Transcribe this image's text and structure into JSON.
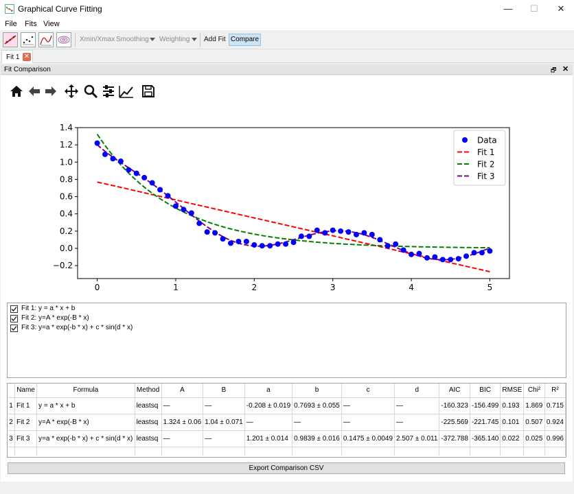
{
  "window": {
    "title": "Graphical Curve Fitting",
    "min": "—",
    "max": "☐",
    "close": "✕"
  },
  "menu": [
    "File",
    "Fits",
    "View"
  ],
  "toolbar": {
    "xminxmax": "Xmin/Xmax",
    "smoothing": "Smoothing",
    "weighting": "Weighting",
    "add_fit": "Add Fit",
    "compare": "Compare"
  },
  "tabs": [
    {
      "label": "Fit 1"
    }
  ],
  "dock": {
    "title": "Fit Comparison",
    "float": "🗗",
    "close": "✕"
  },
  "chart_data": {
    "type": "scatter",
    "xlim": [
      -0.25,
      5.25
    ],
    "ylim": [
      -0.35,
      1.4
    ],
    "xticks": [
      "0",
      "1",
      "2",
      "3",
      "4",
      "5"
    ],
    "yticks": [
      "−0.2",
      "0.0",
      "0.2",
      "0.4",
      "0.6",
      "0.8",
      "1.0",
      "1.2",
      "1.4"
    ],
    "legend_position": "top-right",
    "grid": false,
    "data": {
      "name": "Data",
      "color": "#0000ff",
      "x": [
        0.0,
        0.1,
        0.2,
        0.3,
        0.4,
        0.5,
        0.6,
        0.7,
        0.8,
        0.9,
        1.0,
        1.1,
        1.2,
        1.3,
        1.4,
        1.5,
        1.6,
        1.7,
        1.8,
        1.9,
        2.0,
        2.1,
        2.2,
        2.3,
        2.4,
        2.5,
        2.6,
        2.7,
        2.8,
        2.9,
        3.0,
        3.1,
        3.2,
        3.3,
        3.4,
        3.5,
        3.6,
        3.7,
        3.8,
        3.9,
        4.0,
        4.1,
        4.2,
        4.3,
        4.4,
        4.5,
        4.6,
        4.7,
        4.8,
        4.9,
        5.0
      ],
      "y": [
        1.22,
        1.09,
        1.04,
        1.01,
        0.91,
        0.87,
        0.82,
        0.76,
        0.68,
        0.61,
        0.49,
        0.45,
        0.41,
        0.29,
        0.19,
        0.18,
        0.11,
        0.06,
        0.08,
        0.08,
        0.04,
        0.03,
        0.03,
        0.05,
        0.05,
        0.07,
        0.14,
        0.14,
        0.21,
        0.18,
        0.21,
        0.2,
        0.19,
        0.16,
        0.18,
        0.16,
        0.1,
        0.03,
        0.05,
        -0.02,
        -0.07,
        -0.06,
        -0.11,
        -0.1,
        -0.13,
        -0.13,
        -0.12,
        -0.09,
        -0.05,
        -0.05,
        -0.03
      ]
    },
    "series": [
      {
        "name": "Fit 1",
        "color": "#ff0000",
        "model": "linear",
        "params": {
          "a": -0.208,
          "b": 0.7693
        }
      },
      {
        "name": "Fit 2",
        "color": "#008000",
        "model": "exp",
        "params": {
          "A": 1.324,
          "B": 1.04
        }
      },
      {
        "name": "Fit 3",
        "color": "#800080",
        "model": "exp_sin",
        "params": {
          "a": 1.201,
          "b": 0.9839,
          "c": 0.1475,
          "d": 2.507
        }
      }
    ]
  },
  "checklist": [
    {
      "checked": true,
      "label": "Fit 1: y = a * x + b"
    },
    {
      "checked": true,
      "label": "Fit 2: y=A * exp(-B * x)"
    },
    {
      "checked": true,
      "label": "Fit 3: y=a * exp(-b * x) + c * sin(d * x)"
    }
  ],
  "table": {
    "headers": [
      "Name",
      "Formula",
      "Method",
      "A",
      "B",
      "a",
      "b",
      "c",
      "d",
      "AIC",
      "BIC",
      "RMSE",
      "Chi²",
      "R²"
    ],
    "rows": [
      {
        "num": "1",
        "cells": [
          "Fit 1",
          "y = a * x + b",
          "leastsq",
          "—",
          "—",
          "-0.208 ± 0.019",
          "0.7693 ± 0.055",
          "—",
          "—",
          "-160.323",
          "-156.499",
          "0.193",
          "1.869",
          "0.715"
        ]
      },
      {
        "num": "2",
        "cells": [
          "Fit 2",
          "y=A * exp(-B * x)",
          "leastsq",
          "1.324 ± 0.06",
          "1.04 ± 0.071",
          "—",
          "—",
          "—",
          "—",
          "-225.569",
          "-221.745",
          "0.101",
          "0.507",
          "0.924"
        ]
      },
      {
        "num": "3",
        "cells": [
          "Fit 3",
          "y=a * exp(-b * x) + c * sin(d * x)",
          "leastsq",
          "—",
          "—",
          "1.201 ± 0.014",
          "0.9839 ± 0.016",
          "0.1475 ± 0.0049",
          "2.507 ± 0.011",
          "-372.788",
          "-365.140",
          "0.022",
          "0.025",
          "0.996"
        ]
      }
    ]
  },
  "export_label": "Export Comparison CSV"
}
